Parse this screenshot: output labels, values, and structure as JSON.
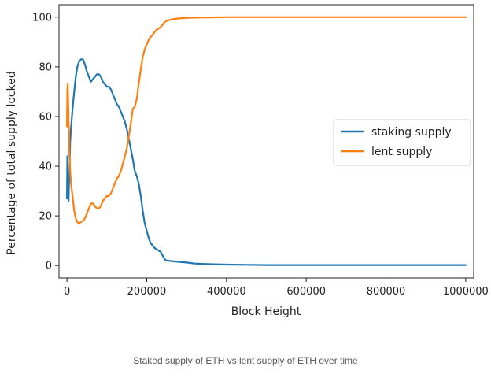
{
  "caption": "Staked supply of ETH vs lent supply of ETH over time",
  "chart_data": {
    "type": "line",
    "title": "",
    "xlabel": "Block Height",
    "ylabel": "Percentage of total supply locked",
    "xlim": [
      -20000,
      1020000
    ],
    "ylim": [
      -5,
      105
    ],
    "xticks": [
      0,
      200000,
      400000,
      600000,
      800000,
      1000000
    ],
    "xtick_labels": [
      "0",
      "200000",
      "400000",
      "600000",
      "800000",
      "1000000"
    ],
    "yticks": [
      0,
      20,
      40,
      60,
      80,
      100
    ],
    "ytick_labels": [
      "0",
      "20",
      "40",
      "60",
      "80",
      "100"
    ],
    "grid": false,
    "legend_position": "center-right",
    "series": [
      {
        "name": "staking supply",
        "color": "#1f77b4",
        "x": [
          0,
          1000,
          2000,
          3000,
          4000,
          5000,
          6000,
          8000,
          10000,
          14000,
          18000,
          22000,
          26000,
          30000,
          35000,
          40000,
          45000,
          50000,
          55000,
          60000,
          65000,
          70000,
          75000,
          80000,
          85000,
          90000,
          95000,
          100000,
          105000,
          110000,
          115000,
          120000,
          125000,
          130000,
          135000,
          140000,
          145000,
          150000,
          155000,
          160000,
          165000,
          170000,
          175000,
          180000,
          185000,
          190000,
          195000,
          200000,
          205000,
          210000,
          215000,
          220000,
          225000,
          230000,
          235000,
          240000,
          245000,
          250000,
          260000,
          280000,
          300000,
          320000,
          350000,
          400000,
          450000,
          500000,
          600000,
          700000,
          800000,
          900000,
          1000000
        ],
        "y": [
          27,
          44,
          30,
          31,
          26,
          33,
          37,
          50,
          55,
          63,
          70,
          76,
          80,
          82,
          83,
          83,
          81,
          78,
          76,
          74,
          75,
          76,
          77,
          77,
          76,
          74,
          73,
          72,
          72,
          71,
          69,
          67,
          65,
          64,
          62,
          60,
          58,
          55,
          51,
          47,
          43,
          38,
          36,
          33,
          28,
          22,
          17,
          14,
          11,
          9,
          8,
          7,
          6.5,
          6,
          5.5,
          4,
          2.5,
          2,
          1.8,
          1.5,
          1.2,
          0.8,
          0.6,
          0.4,
          0.3,
          0.2,
          0.2,
          0.2,
          0.2,
          0.2,
          0.2
        ]
      },
      {
        "name": "lent supply",
        "color": "#ff7f0e",
        "x": [
          0,
          1000,
          2000,
          3000,
          4000,
          5000,
          6000,
          8000,
          10000,
          14000,
          18000,
          22000,
          26000,
          30000,
          35000,
          40000,
          45000,
          50000,
          55000,
          60000,
          65000,
          70000,
          75000,
          80000,
          85000,
          90000,
          95000,
          100000,
          105000,
          110000,
          115000,
          120000,
          125000,
          130000,
          135000,
          140000,
          145000,
          150000,
          155000,
          160000,
          165000,
          170000,
          175000,
          180000,
          185000,
          190000,
          195000,
          200000,
          205000,
          210000,
          215000,
          220000,
          225000,
          230000,
          235000,
          240000,
          245000,
          250000,
          260000,
          280000,
          300000,
          320000,
          350000,
          400000,
          450000,
          500000,
          600000,
          700000,
          800000,
          900000,
          1000000
        ],
        "y": [
          56,
          70,
          73,
          65,
          58,
          54,
          45,
          38,
          33,
          28,
          22,
          19,
          17.5,
          17,
          17.5,
          18,
          19,
          21,
          23,
          25,
          25,
          24,
          23,
          23,
          24,
          26,
          27,
          28,
          28,
          29,
          31,
          33,
          35,
          36,
          38,
          41,
          44,
          47,
          52,
          57,
          63,
          64,
          67,
          73,
          79,
          84,
          87,
          89,
          91,
          92,
          93,
          94,
          95,
          95.5,
          96,
          97,
          98,
          98.5,
          99,
          99.5,
          99.7,
          99.8,
          99.9,
          100,
          100,
          100,
          100,
          100,
          100,
          100,
          100
        ]
      }
    ]
  }
}
